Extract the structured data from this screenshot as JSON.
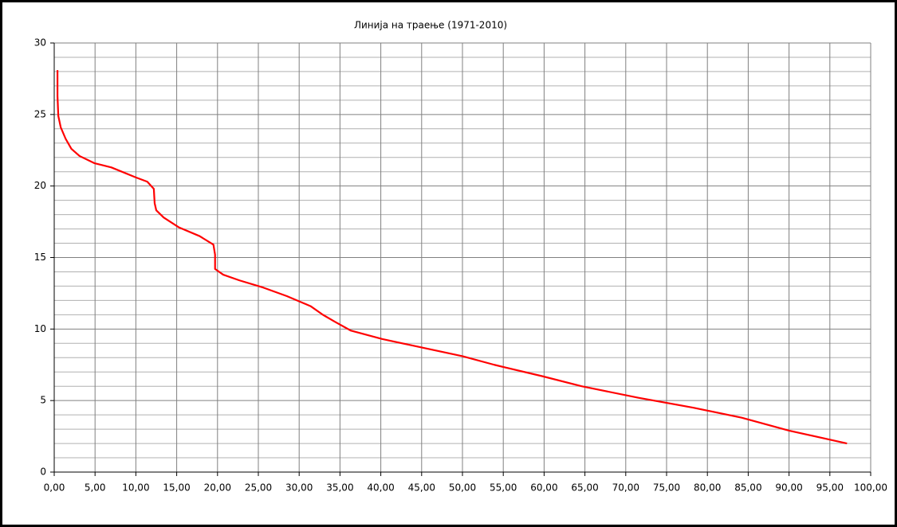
{
  "chart_data": {
    "type": "line",
    "title": "Линија на траење (1971-2010)",
    "x": [
      0.4,
      0.4,
      0.5,
      0.8,
      1.4,
      2.1,
      3.1,
      4.9,
      7.0,
      10.0,
      11.4,
      12.2,
      12.3,
      12.5,
      13.4,
      15.3,
      17.8,
      19.5,
      19.7,
      19.7,
      20.7,
      22.7,
      25.6,
      28.5,
      31.4,
      32.9,
      34.4,
      36.3,
      40.2,
      45.1,
      50.0,
      53.9,
      59.8,
      64.6,
      71.5,
      78.3,
      84.2,
      90.0,
      97.1
    ],
    "series": [
      {
        "color": "#ff0000",
        "values": [
          28.1,
          26.3,
          24.9,
          24.1,
          23.3,
          22.6,
          22.1,
          21.6,
          21.3,
          20.6,
          20.3,
          19.8,
          18.8,
          18.3,
          17.8,
          17.1,
          16.5,
          15.9,
          15.2,
          14.2,
          13.8,
          13.4,
          12.9,
          12.3,
          11.6,
          11.0,
          10.5,
          9.9,
          9.3,
          8.7,
          8.1,
          7.5,
          6.7,
          6.0,
          5.2,
          4.5,
          3.8,
          2.9,
          2.0
        ]
      }
    ],
    "xlim": [
      0,
      100
    ],
    "xticks": [
      {
        "value": 0,
        "label": "0,00"
      },
      {
        "value": 5,
        "label": "5,00"
      },
      {
        "value": 10,
        "label": "10,00"
      },
      {
        "value": 15,
        "label": "15,00"
      },
      {
        "value": 20,
        "label": "20,00"
      },
      {
        "value": 25,
        "label": "25,00"
      },
      {
        "value": 30,
        "label": "30,00"
      },
      {
        "value": 35,
        "label": "35,00"
      },
      {
        "value": 40,
        "label": "40,00"
      },
      {
        "value": 45,
        "label": "45,00"
      },
      {
        "value": 50,
        "label": "50,00"
      },
      {
        "value": 55,
        "label": "55,00"
      },
      {
        "value": 60,
        "label": "60,00"
      },
      {
        "value": 65,
        "label": "65,00"
      },
      {
        "value": 70,
        "label": "70,00"
      },
      {
        "value": 75,
        "label": "75,00"
      },
      {
        "value": 80,
        "label": "80,00"
      },
      {
        "value": 85,
        "label": "85,00"
      },
      {
        "value": 90,
        "label": "90,00"
      },
      {
        "value": 95,
        "label": "95,00"
      },
      {
        "value": 100,
        "label": "100,00"
      }
    ],
    "ylim": [
      0,
      30
    ],
    "yticks": [
      0,
      5,
      10,
      15,
      20,
      25,
      30
    ],
    "yminorticks": [
      1,
      2,
      3,
      4,
      6,
      7,
      8,
      9,
      11,
      12,
      13,
      14,
      16,
      17,
      18,
      19,
      21,
      22,
      23,
      24,
      26,
      27,
      28,
      29
    ],
    "grid": true
  }
}
